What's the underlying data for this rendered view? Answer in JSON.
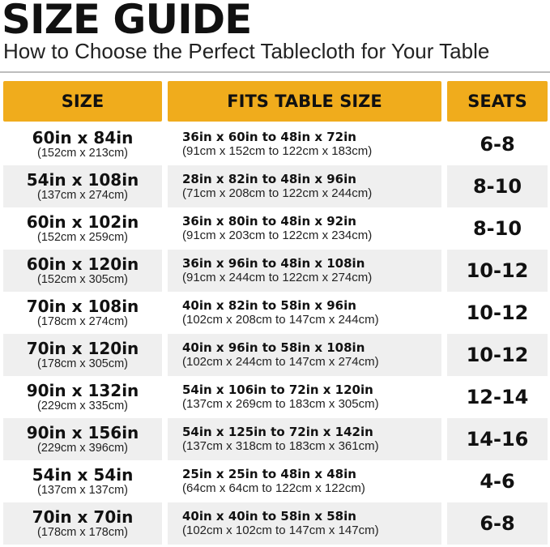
{
  "title": "SIZE GUIDE",
  "subtitle": "How to Choose the Perfect Tablecloth for Your Table",
  "colors": {
    "header_bg": "#f0ac1c",
    "alt_row_bg": "#efefef"
  },
  "headers": [
    "SIZE",
    "FITS TABLE SIZE",
    "SEATS"
  ],
  "rows": [
    {
      "size": "60in x 84in",
      "size_cm": "(152cm x 213cm)",
      "fits": "36in x 60in to 48in x 72in",
      "fits_cm": "(91cm x 152cm to 122cm x 183cm)",
      "seats": "6-8"
    },
    {
      "size": "54in x 108in",
      "size_cm": "(137cm x 274cm)",
      "fits": "28in x 82in to 48in x 96in",
      "fits_cm": "(71cm x 208cm to 122cm x 244cm)",
      "seats": "8-10"
    },
    {
      "size": "60in x 102in",
      "size_cm": "(152cm x 259cm)",
      "fits": "36in x 80in to 48in x 92in",
      "fits_cm": "(91cm x 203cm to 122cm x 234cm)",
      "seats": "8-10"
    },
    {
      "size": "60in x 120in",
      "size_cm": "(152cm x 305cm)",
      "fits": "36in x 96in to 48in x 108in",
      "fits_cm": "(91cm x 244cm to 122cm x 274cm)",
      "seats": "10-12"
    },
    {
      "size": "70in x 108in",
      "size_cm": "(178cm x 274cm)",
      "fits": "40in x 82in to 58in x 96in",
      "fits_cm": "(102cm x 208cm to 147cm x 244cm)",
      "seats": "10-12"
    },
    {
      "size": "70in x 120in",
      "size_cm": "(178cm x 305cm)",
      "fits": "40in x 96in to 58in x 108in",
      "fits_cm": "(102cm x 244cm to 147cm x 274cm)",
      "seats": "10-12"
    },
    {
      "size": "90in x 132in",
      "size_cm": "(229cm x 335cm)",
      "fits": "54in x 106in to 72in x 120in",
      "fits_cm": "(137cm x 269cm to 183cm x 305cm)",
      "seats": "12-14"
    },
    {
      "size": "90in x 156in",
      "size_cm": "(229cm x 396cm)",
      "fits": "54in x 125in to 72in x 142in",
      "fits_cm": "(137cm x 318cm to 183cm x 361cm)",
      "seats": "14-16"
    },
    {
      "size": "54in x 54in",
      "size_cm": "(137cm x 137cm)",
      "fits": "25in x 25in to 48in x 48in",
      "fits_cm": "(64cm x 64cm to 122cm x 122cm)",
      "seats": "4-6"
    },
    {
      "size": "70in x 70in",
      "size_cm": "(178cm x 178cm)",
      "fits": "40in x 40in to 58in x 58in",
      "fits_cm": "(102cm x 102cm to 147cm x 147cm)",
      "seats": "6-8"
    }
  ]
}
